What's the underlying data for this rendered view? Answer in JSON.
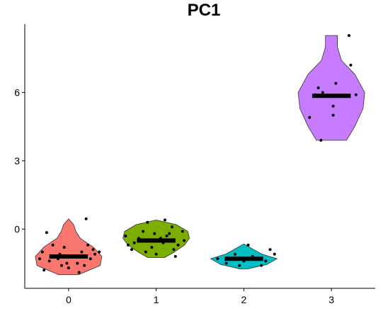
{
  "chart_data": {
    "type": "violin",
    "title": "PC1",
    "xlabel": "",
    "ylabel": "",
    "categories": [
      "0",
      "1",
      "2",
      "3"
    ],
    "ylim": [
      -2.6,
      9.0
    ],
    "yticks": [
      0,
      3,
      6
    ],
    "grid": false,
    "legend": "none",
    "series": [
      {
        "category": "0",
        "color": "#F8766D",
        "median": -1.2,
        "min": -2.0,
        "max": 0.45,
        "density": [
          [
            -2.0,
            0.3
          ],
          [
            -1.6,
            0.95
          ],
          [
            -1.2,
            1.0
          ],
          [
            -0.8,
            0.75
          ],
          [
            -0.4,
            0.35
          ],
          [
            -0.1,
            0.22
          ],
          [
            0.2,
            0.15
          ],
          [
            0.45,
            0.0
          ]
        ],
        "points": [
          [
            -0.3,
            -1.0
          ],
          [
            -0.22,
            -1.4
          ],
          [
            -0.1,
            -1.1
          ],
          [
            0.05,
            -1.2
          ],
          [
            0.18,
            -1.6
          ],
          [
            0.28,
            -0.9
          ],
          [
            -0.28,
            -1.8
          ],
          [
            -0.05,
            -0.8
          ],
          [
            0.1,
            -1.5
          ],
          [
            0.25,
            -1.3
          ],
          [
            -0.18,
            -0.7
          ],
          [
            0.0,
            -1.7
          ],
          [
            0.3,
            -1.1
          ],
          [
            -0.12,
            -1.3
          ],
          [
            0.15,
            -1.0
          ],
          [
            0.2,
            0.45
          ],
          [
            -0.25,
            -0.15
          ],
          [
            0.12,
            -1.9
          ],
          [
            -0.02,
            -1.5
          ],
          [
            0.22,
            -0.7
          ],
          [
            -0.33,
            -1.3
          ],
          [
            0.07,
            -1.2
          ],
          [
            0.35,
            -1.0
          ],
          [
            -0.08,
            -1.6
          ]
        ]
      },
      {
        "category": "1",
        "color": "#7CAE00",
        "median": -0.5,
        "min": -1.25,
        "max": 0.4,
        "density": [
          [
            -1.25,
            0.25
          ],
          [
            -1.0,
            0.55
          ],
          [
            -0.7,
            0.85
          ],
          [
            -0.4,
            1.0
          ],
          [
            -0.1,
            0.95
          ],
          [
            0.2,
            0.6
          ],
          [
            0.4,
            0.0
          ]
        ],
        "points": [
          [
            -0.35,
            -0.3
          ],
          [
            -0.25,
            -0.6
          ],
          [
            -0.15,
            -0.1
          ],
          [
            -0.05,
            -0.8
          ],
          [
            0.05,
            -0.4
          ],
          [
            0.15,
            -0.2
          ],
          [
            0.25,
            -0.7
          ],
          [
            0.32,
            -0.5
          ],
          [
            -0.28,
            -0.9
          ],
          [
            -0.1,
            0.3
          ],
          [
            0.0,
            -1.1
          ],
          [
            0.1,
            0.4
          ],
          [
            0.2,
            -0.9
          ],
          [
            0.3,
            -0.1
          ],
          [
            -0.2,
            -0.4
          ],
          [
            0.08,
            -0.6
          ],
          [
            -0.02,
            -0.2
          ],
          [
            0.22,
            -1.2
          ],
          [
            0.18,
            0.1
          ],
          [
            -0.12,
            -1.0
          ],
          [
            0.12,
            -0.3
          ],
          [
            -0.32,
            -0.7
          ]
        ]
      },
      {
        "category": "2",
        "color": "#00BFC4",
        "median": -1.3,
        "min": -1.75,
        "max": -0.65,
        "density": [
          [
            -1.75,
            0.1
          ],
          [
            -1.55,
            0.7
          ],
          [
            -1.3,
            1.0
          ],
          [
            -1.1,
            0.55
          ],
          [
            -0.9,
            0.3
          ],
          [
            -0.65,
            0.0
          ]
        ],
        "points": [
          [
            -0.3,
            -1.3
          ],
          [
            -0.2,
            -1.5
          ],
          [
            -0.1,
            -1.1
          ],
          [
            0.0,
            -1.4
          ],
          [
            0.1,
            -1.2
          ],
          [
            0.2,
            -1.6
          ],
          [
            0.3,
            -0.9
          ],
          [
            -0.15,
            -1.3
          ],
          [
            0.05,
            -0.7
          ],
          [
            0.15,
            -1.3
          ],
          [
            -0.05,
            -1.6
          ],
          [
            0.25,
            -1.4
          ],
          [
            0.35,
            -1.1
          ]
        ]
      },
      {
        "category": "3",
        "color": "#C77CFF",
        "median": 5.85,
        "min": 3.9,
        "max": 8.5,
        "density": [
          [
            3.9,
            0.45
          ],
          [
            4.5,
            0.7
          ],
          [
            5.3,
            0.95
          ],
          [
            6.0,
            1.0
          ],
          [
            6.8,
            0.7
          ],
          [
            7.4,
            0.3
          ],
          [
            8.0,
            0.18
          ],
          [
            8.5,
            0.18
          ]
        ],
        "points": [
          [
            0.2,
            8.5
          ],
          [
            0.22,
            7.2
          ],
          [
            -0.15,
            6.2
          ],
          [
            0.05,
            6.4
          ],
          [
            0.28,
            5.9
          ],
          [
            -0.18,
            5.9
          ],
          [
            -0.1,
            6.0
          ],
          [
            0.02,
            5.4
          ],
          [
            0.02,
            5.0
          ],
          [
            -0.25,
            4.9
          ],
          [
            -0.12,
            3.9
          ]
        ]
      }
    ]
  }
}
